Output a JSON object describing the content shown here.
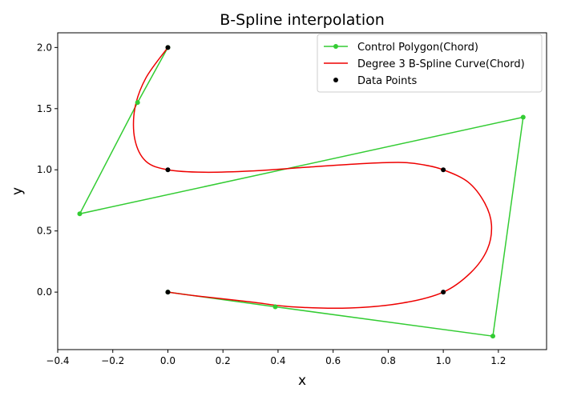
{
  "chart_data": {
    "type": "line",
    "title": "B-Spline interpolation",
    "xlabel": "x",
    "ylabel": "y",
    "xlim": [
      -0.4,
      1.375
    ],
    "ylim": [
      -0.47,
      2.12
    ],
    "xticks": [
      "−0.4",
      "−0.2",
      "0.0",
      "0.2",
      "0.4",
      "0.6",
      "0.8",
      "1.0",
      "1.2"
    ],
    "xtick_values": [
      -0.4,
      -0.2,
      0.0,
      0.2,
      0.4,
      0.6,
      0.8,
      1.0,
      1.2
    ],
    "yticks": [
      "0.0",
      "0.5",
      "1.0",
      "1.5",
      "2.0"
    ],
    "ytick_values": [
      0.0,
      0.5,
      1.0,
      1.5,
      2.0
    ],
    "grid": false,
    "legend_position": "top-right",
    "series": [
      {
        "name": "Control Polygon(Chord)",
        "kind": "line-markers",
        "color": "#33cc33",
        "points": [
          [
            0.0,
            2.0
          ],
          [
            -0.11,
            1.55
          ],
          [
            -0.32,
            0.64
          ],
          [
            1.29,
            1.43
          ],
          [
            1.18,
            -0.36
          ],
          [
            0.39,
            -0.12
          ],
          [
            0.0,
            0.0
          ]
        ]
      },
      {
        "name": "Degree 3 B-Spline Curve(Chord)",
        "kind": "line",
        "color": "#ee0000",
        "points": [
          [
            0.0,
            2.0
          ],
          [
            -0.08,
            1.75
          ],
          [
            -0.12,
            1.5
          ],
          [
            -0.12,
            1.25
          ],
          [
            -0.08,
            1.07
          ],
          [
            0.0,
            1.0
          ],
          [
            0.13,
            0.98
          ],
          [
            0.3,
            0.99
          ],
          [
            0.5,
            1.02
          ],
          [
            0.7,
            1.05
          ],
          [
            0.85,
            1.06
          ],
          [
            0.93,
            1.04
          ],
          [
            1.0,
            1.0
          ],
          [
            1.09,
            0.9
          ],
          [
            1.15,
            0.73
          ],
          [
            1.175,
            0.55
          ],
          [
            1.16,
            0.35
          ],
          [
            1.1,
            0.16
          ],
          [
            1.0,
            0.0
          ],
          [
            0.85,
            -0.09
          ],
          [
            0.66,
            -0.13
          ],
          [
            0.45,
            -0.12
          ],
          [
            0.3,
            -0.08
          ],
          [
            0.1,
            -0.03
          ],
          [
            0.0,
            0.0
          ]
        ]
      },
      {
        "name": "Data Points",
        "kind": "markers",
        "color": "#000000",
        "points": [
          [
            0.0,
            2.0
          ],
          [
            0.0,
            1.0
          ],
          [
            1.0,
            1.0
          ],
          [
            1.0,
            0.0
          ],
          [
            0.0,
            0.0
          ]
        ]
      }
    ]
  }
}
